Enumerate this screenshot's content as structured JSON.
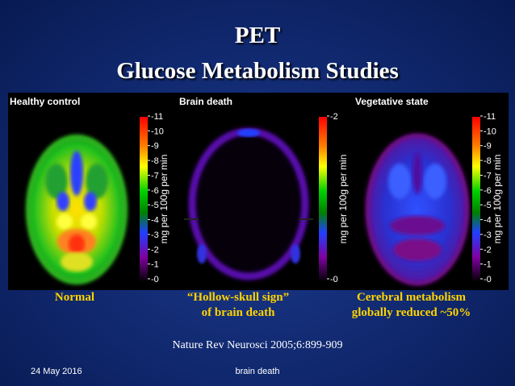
{
  "slide": {
    "title_line1": "PET",
    "title_line2": "Glucose Metabolism Studies"
  },
  "panels": [
    {
      "label": "Healthy control",
      "unit": "mg per 100g per min",
      "ticks": [
        "11",
        "10",
        "9",
        "8",
        "7",
        "6",
        "5",
        "4",
        "3",
        "2",
        "1",
        "0"
      ]
    },
    {
      "label": "Brain death",
      "unit": "mg per 100g per min",
      "ticks": [
        "2",
        "0"
      ]
    },
    {
      "label": "Vegetative state",
      "unit": "mg per 100g per min",
      "ticks": [
        "11",
        "10",
        "9",
        "8",
        "7",
        "6",
        "5",
        "4",
        "3",
        "2",
        "1",
        "0"
      ]
    }
  ],
  "captions": {
    "normal": "Normal",
    "hollow_line1": "“Hollow-skull sign”",
    "hollow_line2": "of brain death",
    "cerebral_line1": "Cerebral metabolism",
    "cerebral_line2": "globally reduced ~50%"
  },
  "citation": "Nature Rev Neurosci 2005;6:899-909",
  "footer": {
    "date": "24 May 2016",
    "center": "brain death"
  },
  "colors": {
    "caption": "#ffd400",
    "background": "#10286e"
  }
}
